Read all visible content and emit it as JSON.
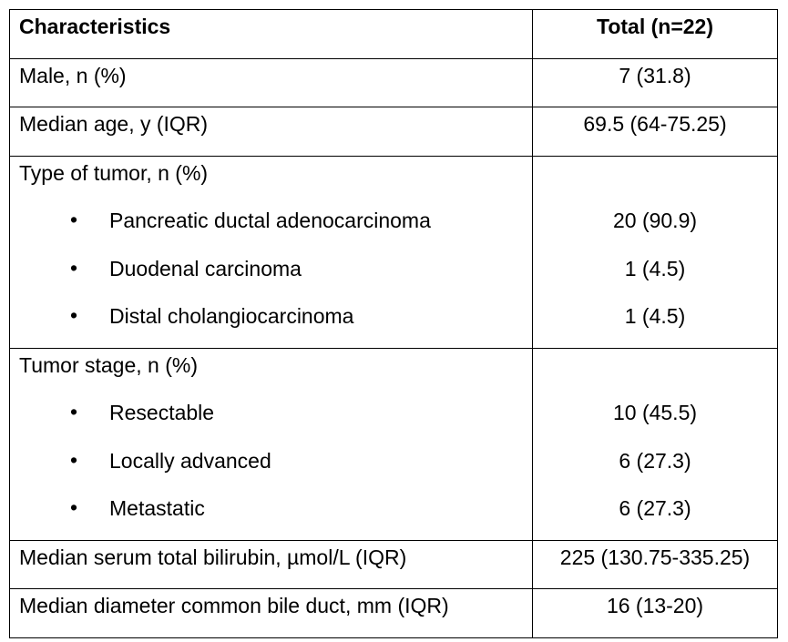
{
  "table": {
    "header": {
      "characteristics": "Characteristics",
      "total": "Total (n=22)"
    },
    "rows": [
      {
        "label": "Male, n (%)",
        "value": "7 (31.8)"
      },
      {
        "label": "Median age, y (IQR)",
        "value": "69.5 (64-75.25)"
      },
      {
        "label": "Type of tumor, n (%)",
        "items": [
          {
            "label": "Pancreatic ductal adenocarcinoma",
            "value": "20 (90.9)"
          },
          {
            "label": "Duodenal carcinoma",
            "value": "1 (4.5)"
          },
          {
            "label": "Distal cholangiocarcinoma",
            "value": "1 (4.5)"
          }
        ]
      },
      {
        "label": "Tumor stage, n (%)",
        "items": [
          {
            "label": "Resectable",
            "value": "10 (45.5)"
          },
          {
            "label": "Locally advanced",
            "value": "6 (27.3)"
          },
          {
            "label": "Metastatic",
            "value": "6 (27.3)"
          }
        ]
      },
      {
        "label": "Median serum total bilirubin, µmol/L (IQR)",
        "value": "225 (130.75-335.25)"
      },
      {
        "label": "Median diameter common bile duct, mm (IQR)",
        "value": "16 (13-20)"
      }
    ],
    "bullet": "•"
  }
}
